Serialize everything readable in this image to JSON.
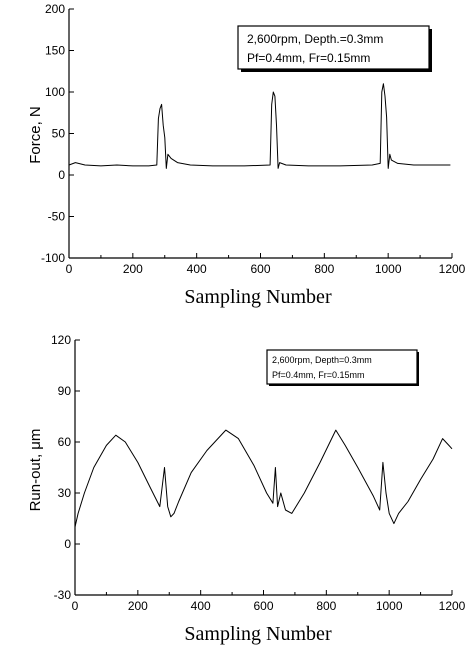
{
  "chart_data": [
    {
      "type": "line",
      "xlabel": "Sampling Number",
      "ylabel": "Force, N",
      "xlim": [
        0,
        1200
      ],
      "ylim": [
        -100,
        200
      ],
      "xticks": [
        0,
        200,
        400,
        600,
        800,
        1000,
        1200
      ],
      "yticks": [
        -100,
        -50,
        0,
        50,
        100,
        150,
        200
      ],
      "legend_placement": "top-right",
      "annotation_lines": [
        "2,600rpm, Depth.=0.3mm",
        "Pf=0.4mm, Fr=0.15mm"
      ],
      "series": [
        {
          "values_note": "",
          "x": [
            0,
            20,
            50,
            100,
            150,
            200,
            250,
            275,
            280,
            285,
            290,
            295,
            300,
            305,
            310,
            320,
            340,
            380,
            450,
            550,
            630,
            635,
            640,
            645,
            650,
            655,
            660,
            680,
            750,
            850,
            950,
            975,
            980,
            985,
            990,
            995,
            1000,
            1005,
            1010,
            1030,
            1080,
            1150,
            1195
          ],
          "y": [
            12,
            15,
            12,
            11,
            12,
            11,
            11,
            12,
            68,
            80,
            85,
            60,
            45,
            8,
            25,
            20,
            15,
            12,
            11,
            11,
            12,
            85,
            100,
            95,
            60,
            8,
            15,
            12,
            11,
            11,
            12,
            14,
            100,
            110,
            95,
            70,
            8,
            25,
            18,
            14,
            12,
            12,
            12
          ]
        }
      ]
    },
    {
      "type": "line",
      "xlabel": "Sampling Number",
      "ylabel": "Run-out, μm",
      "xlim": [
        0,
        1200
      ],
      "ylim": [
        -30,
        120
      ],
      "xticks": [
        0,
        200,
        400,
        600,
        800,
        1000,
        1200
      ],
      "yticks": [
        -30,
        0,
        30,
        60,
        90,
        120
      ],
      "legend_placement": "top-right",
      "annotation_lines": [
        "2,600rpm, Depth=0.3mm",
        "Pf=0.4mm, Fr=0.15mm"
      ],
      "series": [
        {
          "x": [
            0,
            10,
            30,
            60,
            100,
            130,
            160,
            200,
            240,
            270,
            285,
            295,
            305,
            315,
            330,
            370,
            420,
            480,
            520,
            570,
            610,
            630,
            638,
            645,
            655,
            670,
            690,
            730,
            780,
            830,
            860,
            900,
            950,
            970,
            980,
            990,
            1000,
            1015,
            1030,
            1060,
            1100,
            1140,
            1170,
            1190,
            1200
          ],
          "y": [
            10,
            18,
            30,
            45,
            58,
            64,
            60,
            48,
            33,
            22,
            45,
            22,
            16,
            18,
            25,
            42,
            55,
            67,
            62,
            46,
            30,
            24,
            45,
            22,
            30,
            20,
            18,
            30,
            48,
            67,
            58,
            45,
            28,
            20,
            48,
            30,
            18,
            12,
            18,
            25,
            38,
            50,
            62,
            58,
            56
          ]
        }
      ]
    }
  ]
}
